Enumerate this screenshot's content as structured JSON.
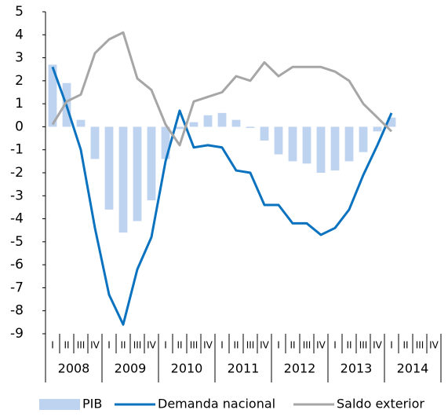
{
  "chart_data": {
    "type": "bar-line",
    "categories": [
      "I",
      "II",
      "III",
      "IV",
      "I",
      "II",
      "III",
      "IV",
      "I",
      "II",
      "III",
      "IV",
      "I",
      "II",
      "III",
      "IV",
      "I",
      "II",
      "III",
      "IV",
      "I",
      "II",
      "III",
      "IV",
      "I",
      "II",
      "III",
      "IV"
    ],
    "groups": [
      "2008",
      "2009",
      "2010",
      "2011",
      "2012",
      "2013",
      "2014"
    ],
    "series": [
      {
        "name": "PIB",
        "color": "#bdd3ef",
        "kind": "bar",
        "values": [
          2.7,
          1.9,
          0.3,
          -1.4,
          -3.6,
          -4.6,
          -4.1,
          -3.2,
          -1.4,
          -0.1,
          0.2,
          0.5,
          0.6,
          0.3,
          -0.05,
          -0.6,
          -1.2,
          -1.5,
          -1.6,
          -2.0,
          -1.9,
          -1.5,
          -1.1,
          -0.2,
          0.4,
          null,
          null,
          null
        ]
      },
      {
        "name": "Demanda nacional",
        "color": "#0a72bf",
        "kind": "line",
        "values": [
          2.6,
          0.9,
          -1.0,
          -4.4,
          -7.3,
          -8.6,
          -6.2,
          -4.8,
          -1.5,
          0.7,
          -0.9,
          -0.8,
          -0.9,
          -1.9,
          -2.0,
          -3.4,
          -3.4,
          -4.2,
          -4.2,
          -4.7,
          -4.4,
          -3.6,
          -2.1,
          -0.8,
          0.6,
          null,
          null,
          null
        ]
      },
      {
        "name": "Saldo exterior",
        "color": "#a6a6a6",
        "kind": "line",
        "values": [
          0.1,
          1.1,
          1.4,
          3.2,
          3.8,
          4.1,
          2.1,
          1.6,
          0.1,
          -0.8,
          1.1,
          1.3,
          1.5,
          2.2,
          2.0,
          2.8,
          2.2,
          2.6,
          2.6,
          2.6,
          2.4,
          2.0,
          1.0,
          0.4,
          -0.2,
          null,
          null,
          null
        ]
      }
    ],
    "ylim": [
      -9,
      5
    ],
    "yticks": [
      -9,
      -8,
      -7,
      -6,
      -5,
      -4,
      -3,
      -2,
      -1,
      0,
      1,
      2,
      3,
      4,
      5
    ]
  }
}
